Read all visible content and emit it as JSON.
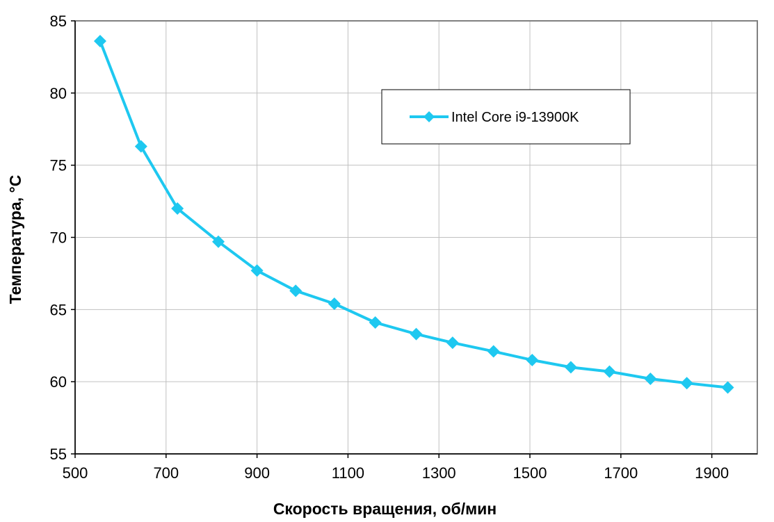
{
  "chart_data": {
    "type": "line",
    "title": "",
    "xlabel": "Скорость вращения, об/мин",
    "ylabel": "Температура, °C",
    "xlim": [
      500,
      2000
    ],
    "ylim": [
      55,
      85
    ],
    "x_ticks": [
      500,
      700,
      900,
      1100,
      1300,
      1500,
      1700,
      1900
    ],
    "y_ticks": [
      55,
      60,
      65,
      70,
      75,
      80,
      85
    ],
    "grid": true,
    "legend_position": "top-right",
    "series": [
      {
        "name": "Intel Core i9-13900K",
        "color": "#1EC8F0",
        "marker": "diamond",
        "x": [
          555,
          645,
          725,
          815,
          900,
          985,
          1070,
          1160,
          1250,
          1330,
          1420,
          1505,
          1590,
          1675,
          1765,
          1845,
          1935
        ],
        "y": [
          83.6,
          76.3,
          72.0,
          69.7,
          67.7,
          66.3,
          65.4,
          64.1,
          63.3,
          62.7,
          62.1,
          61.5,
          61.0,
          60.7,
          60.2,
          59.9,
          59.6
        ]
      }
    ]
  }
}
